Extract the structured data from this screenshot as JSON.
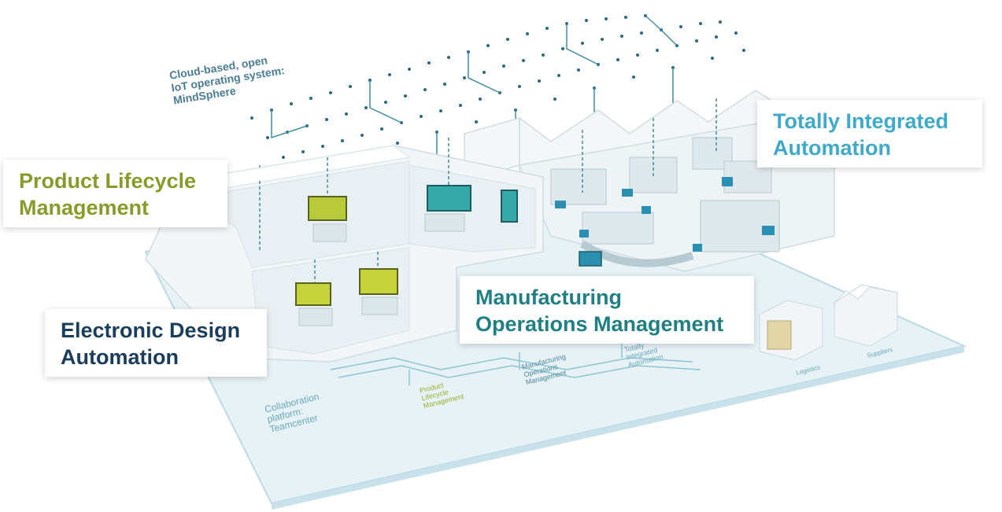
{
  "cloud_label": [
    "Cloud-based, open",
    "IoT operating system:",
    "MindSphere"
  ],
  "callouts": {
    "plm": [
      "Product Lifecycle",
      "Management"
    ],
    "eda": [
      "Electronic Design",
      "Automation"
    ],
    "mom": [
      "Manufacturing",
      "Operations Management"
    ],
    "tia": [
      "Totally Integrated",
      "Automation"
    ]
  },
  "floor_labels": {
    "collab": [
      "Collaboration",
      "platform:",
      "Teamcenter"
    ],
    "plm": [
      "Product",
      "Lifecycle",
      "Management"
    ],
    "mom": [
      "Manufacturing",
      "Operations",
      "Management"
    ],
    "tia": [
      "Totally",
      "Integrated",
      "Automation"
    ],
    "logistics": [
      "Logistics"
    ],
    "suppliers": [
      "Suppliers"
    ]
  },
  "colors": {
    "plm": "#8a9a2a",
    "eda": "#1a3d5c",
    "mom": "#1f7f82",
    "tia": "#3fa9c8",
    "floor": "#e3f1f5",
    "dots": "#1f5d73"
  }
}
